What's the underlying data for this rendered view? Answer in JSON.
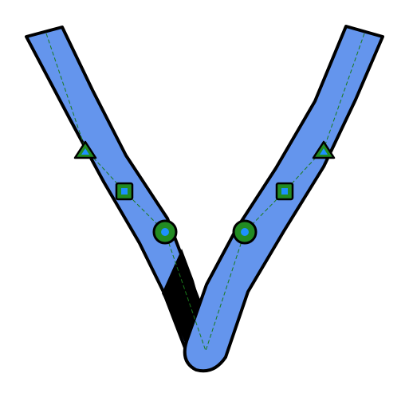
{
  "figure": {
    "description_free": true,
    "colors": {
      "band_fill": "#6495ed",
      "stroke": "#000000",
      "marker_fill": "#228b22",
      "marker_inner": "#1e90ff",
      "guide": "#1a7a1a",
      "shadow": "#000000",
      "background": "#ffffff"
    },
    "markers": [
      {
        "shape": "triangle-icon",
        "side": "left"
      },
      {
        "shape": "square-icon",
        "side": "left"
      },
      {
        "shape": "circle-icon",
        "side": "left"
      },
      {
        "shape": "circle-icon",
        "side": "right"
      },
      {
        "shape": "square-icon",
        "side": "right"
      },
      {
        "shape": "triangle-icon",
        "side": "right"
      }
    ]
  }
}
